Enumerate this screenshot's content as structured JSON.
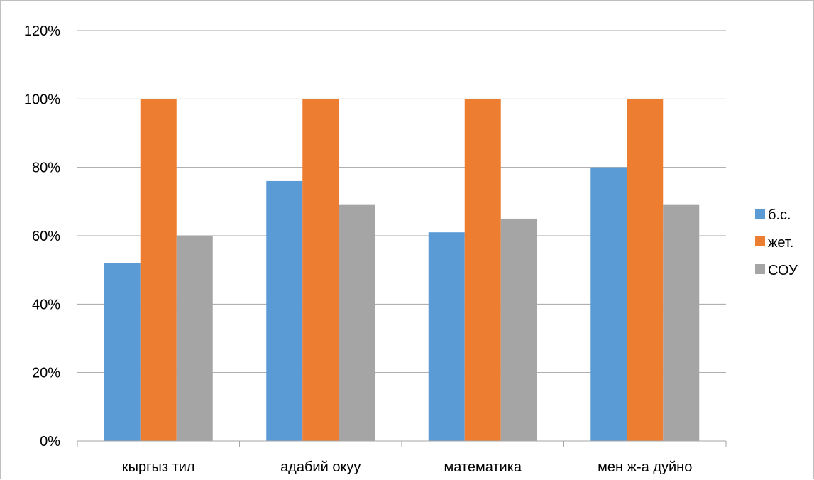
{
  "chart_data": {
    "type": "bar",
    "title": "",
    "xlabel": "",
    "ylabel": "",
    "categories": [
      "кыргыз тил",
      "адабий окуу",
      "математика",
      "мен ж-а дуйно"
    ],
    "series": [
      {
        "name": "б.с.",
        "color": "#5b9bd5",
        "values": [
          52,
          76,
          61,
          80
        ]
      },
      {
        "name": "жет.",
        "color": "#ed7d31",
        "values": [
          100,
          100,
          100,
          100
        ]
      },
      {
        "name": "СОУ",
        "color": "#a5a5a5",
        "values": [
          60,
          69,
          65,
          69
        ]
      }
    ],
    "ylim": [
      0,
      120
    ],
    "yticks": [
      0,
      20,
      40,
      60,
      80,
      100,
      120
    ],
    "ytick_labels": [
      "0%",
      "20%",
      "40%",
      "60%",
      "80%",
      "100%",
      "120%"
    ],
    "grid": true,
    "legend_position": "right"
  }
}
